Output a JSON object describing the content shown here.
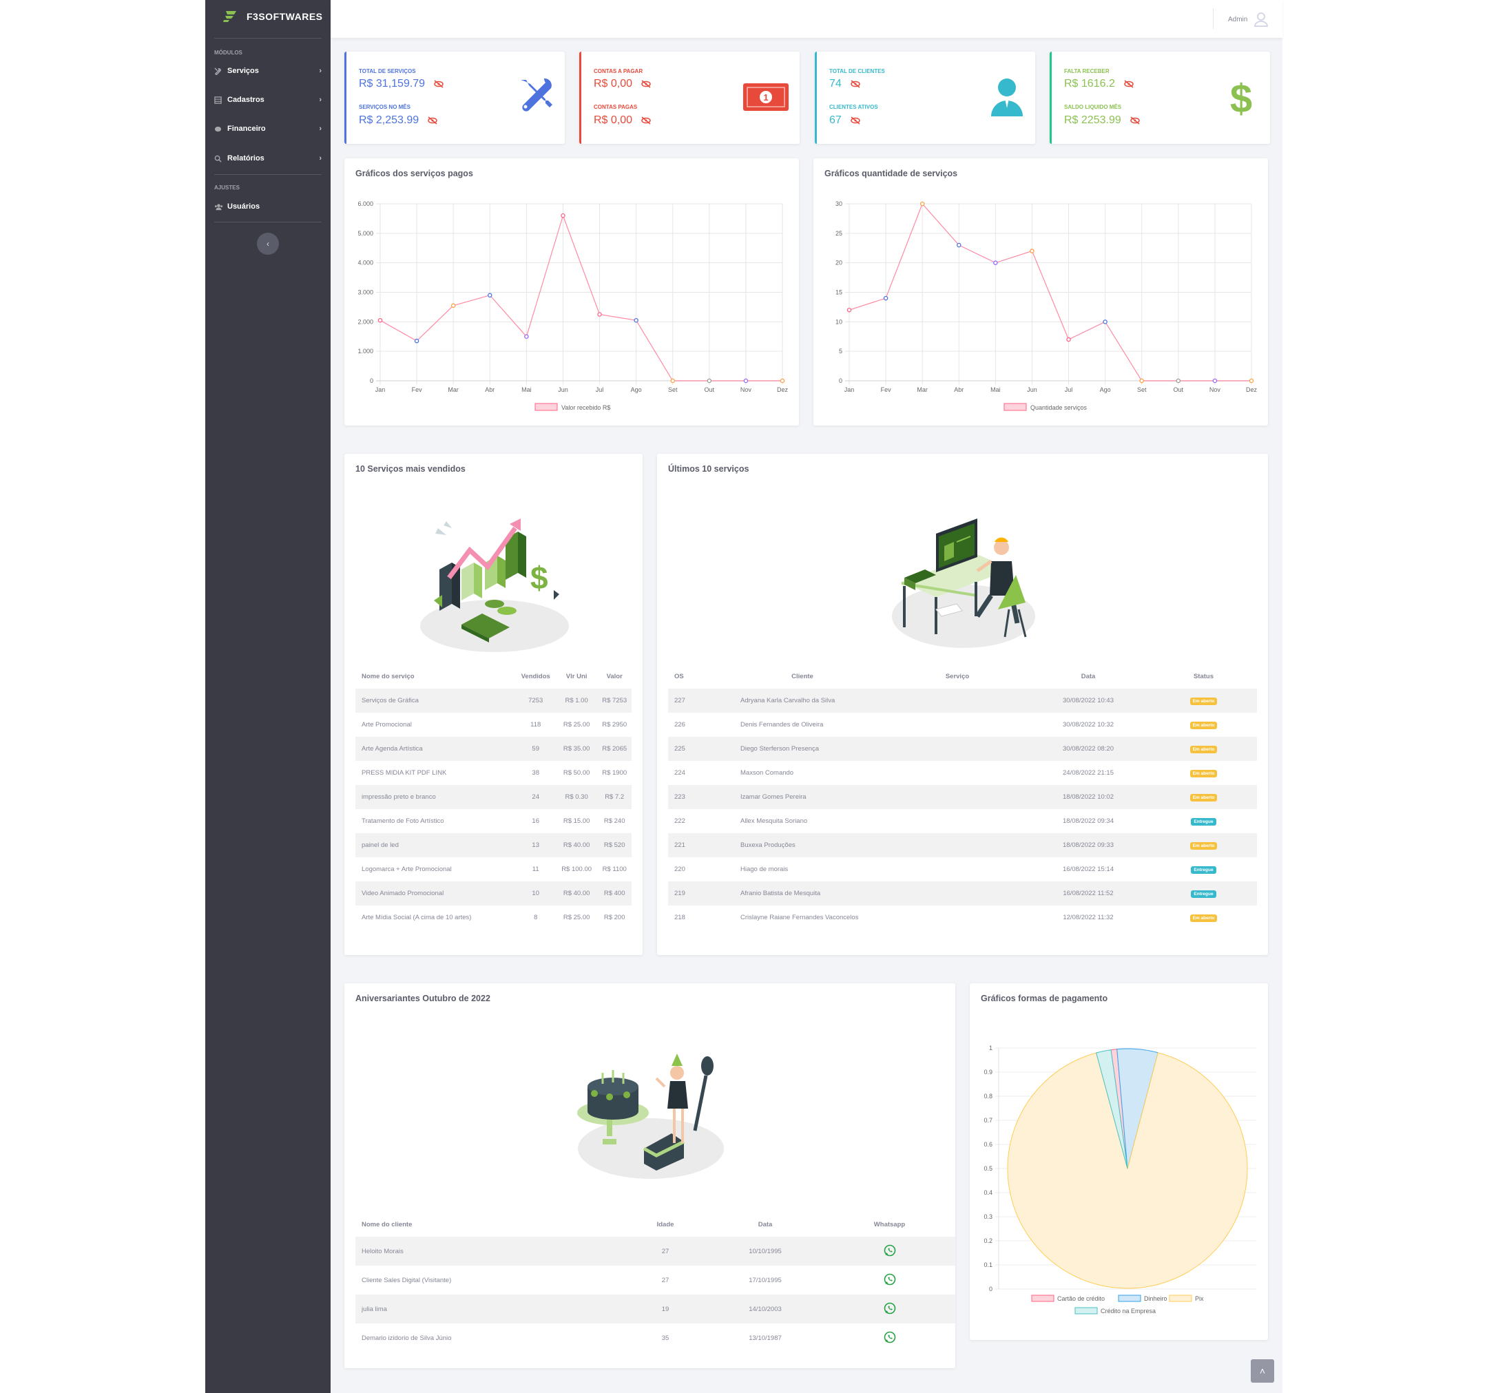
{
  "brand": {
    "name": "F3SOFTWARES"
  },
  "sidebar": {
    "heading_modules": "MÓDULOS",
    "items": [
      {
        "label": "Serviços",
        "icon": "tools-icon"
      },
      {
        "label": "Cadastros",
        "icon": "table-icon"
      },
      {
        "label": "Financeiro",
        "icon": "money-icon"
      },
      {
        "label": "Relatórios",
        "icon": "search-icon"
      }
    ],
    "heading_settings": "AJUSTES",
    "users_label": "Usuários",
    "toggle_glyph": "‹"
  },
  "topbar": {
    "user_label": "Admin"
  },
  "kpis": [
    {
      "label1": "TOTAL DE SERVIÇOS",
      "value1": "R$ 31,159.79",
      "label2": "SERVIÇOS NO MÊS",
      "value2": "R$ 2,253.99",
      "color": "#4e73df",
      "icon": "tools-icon"
    },
    {
      "label1": "CONTAS A PAGAR",
      "value1": "R$ 0,00",
      "label2": "CONTAS PAGAS",
      "value2": "R$ 0,00",
      "color": "#e74a3b",
      "icon": "money-bill-icon"
    },
    {
      "label1": "TOTAL DE CLIENTES",
      "value1": "74",
      "label2": "CLIENTES ATIVOS",
      "value2": "67",
      "color": "#36b9cc",
      "icon": "user-icon"
    },
    {
      "label1": "FALTA RECEBER",
      "value1": "R$ 1616.2",
      "label2": "SALDO LIQUIDO MÊS",
      "value2": "R$ 2253.99",
      "color": "#1cc88a",
      "value_color": "#8cc152",
      "icon": "dollar-icon"
    }
  ],
  "chart_titles": {
    "paid": "Gráficos dos serviços pagos",
    "qty": "Gráficos quantidade de serviços",
    "payments": "Gráficos formas de pagamento"
  },
  "chart_data": [
    {
      "type": "line",
      "categories": [
        "Jan",
        "Fev",
        "Mar",
        "Abr",
        "Mai",
        "Jun",
        "Jul",
        "Ago",
        "Set",
        "Out",
        "Nov",
        "Dez"
      ],
      "series": [
        {
          "name": "Valor recebido R$",
          "values": [
            2050,
            1350,
            2550,
            2900,
            1500,
            5600,
            2250,
            2050,
            0,
            0,
            0,
            0
          ]
        }
      ],
      "yticks": [
        "0",
        "1.000",
        "2.000",
        "3.000",
        "4.000",
        "5.000",
        "6.000"
      ],
      "ylim": [
        0,
        6000
      ],
      "line_color": "#ff6384",
      "point_colors": [
        "#ff6384",
        "#4e73df",
        "#ff9f40",
        "#4e73df",
        "#9966ff",
        "#ff6384",
        "#ff6384",
        "#4e73df",
        "#ff9f40",
        "#999999",
        "#9966ff",
        "#ff9f40"
      ],
      "grid": true,
      "legend": "bottom"
    },
    {
      "type": "line",
      "categories": [
        "Jan",
        "Fev",
        "Mar",
        "Abr",
        "Mai",
        "Jun",
        "Jul",
        "Ago",
        "Set",
        "Out",
        "Nov",
        "Dez"
      ],
      "series": [
        {
          "name": "Quantidade serviços",
          "values": [
            12,
            14,
            30,
            23,
            20,
            22,
            7,
            10,
            0,
            0,
            0,
            0
          ]
        }
      ],
      "yticks": [
        "0",
        "5",
        "10",
        "15",
        "20",
        "25",
        "30"
      ],
      "ylim": [
        0,
        30
      ],
      "line_color": "#ff6384",
      "point_colors": [
        "#ff6384",
        "#4e73df",
        "#ff9f40",
        "#4e73df",
        "#9966ff",
        "#ff9f40",
        "#ff6384",
        "#4e73df",
        "#ff9f40",
        "#999999",
        "#9966ff",
        "#ff9f40"
      ],
      "grid": true,
      "legend": "bottom"
    },
    {
      "type": "pie",
      "series": [
        {
          "name": "Cartão de crédito",
          "value": 0.008,
          "fill": "#ffd3dc",
          "stroke": "#ff6384"
        },
        {
          "name": "Dinheiro",
          "value": 0.055,
          "fill": "#cfe7f7",
          "stroke": "#36a2eb"
        },
        {
          "name": "Pix",
          "value": 0.917,
          "fill": "#fff1d6",
          "stroke": "#ffcd56"
        },
        {
          "name": "Crédito na Empresa",
          "value": 0.02,
          "fill": "#d4f1f1",
          "stroke": "#4bc0c0"
        }
      ],
      "yticks": [
        "0",
        "0.1",
        "0.2",
        "0.3",
        "0.4",
        "0.5",
        "0.6",
        "0.7",
        "0.8",
        "0.9",
        "1"
      ],
      "ylim": [
        0,
        1
      ],
      "legend": "bottom"
    }
  ],
  "top_services": {
    "title": "10 Serviços mais vendidos",
    "headers": [
      "Nome do serviço",
      "Vendidos",
      "Vlr Uni",
      "Valor"
    ],
    "rows": [
      [
        "Serviços de Gráfica",
        "7253",
        "R$ 1.00",
        "R$ 7253"
      ],
      [
        "Arte Promocional",
        "118",
        "R$ 25.00",
        "R$ 2950"
      ],
      [
        "Arte Agenda Artística",
        "59",
        "R$ 35.00",
        "R$ 2065"
      ],
      [
        "PRESS MIDIA KIT PDF LINK",
        "38",
        "R$ 50.00",
        "R$ 1900"
      ],
      [
        "impressão preto e branco",
        "24",
        "R$ 0.30",
        "R$ 7.2"
      ],
      [
        "Tratamento de Foto Artístico",
        "16",
        "R$ 15.00",
        "R$ 240"
      ],
      [
        "painel de led",
        "13",
        "R$ 40.00",
        "R$ 520"
      ],
      [
        "Logomarca + Arte Promocional",
        "11",
        "R$ 100.00",
        "R$ 1100"
      ],
      [
        "Video Animado Promocional",
        "10",
        "R$ 40.00",
        "R$ 400"
      ],
      [
        "Arte Mídia Social (A cima de 10 artes)",
        "8",
        "R$ 25.00",
        "R$ 200"
      ]
    ]
  },
  "last_services": {
    "title": "Últimos 10 serviços",
    "headers": [
      "OS",
      "Cliente",
      "Serviço",
      "Data",
      "Status"
    ],
    "rows": [
      [
        "227",
        "Adryana Karla Carvalho da Silva",
        "",
        "30/08/2022 10:43",
        "Em aberto"
      ],
      [
        "226",
        "Denis Fernandes de Oliveira",
        "",
        "30/08/2022 10:32",
        "Em aberto"
      ],
      [
        "225",
        "Diego Sterferson Presença",
        "",
        "30/08/2022 08:20",
        "Em aberto"
      ],
      [
        "224",
        "Maxson Comando",
        "",
        "24/08/2022 21:15",
        "Em aberto"
      ],
      [
        "223",
        "Izamar Gomes Pereira",
        "",
        "18/08/2022 10:02",
        "Em aberto"
      ],
      [
        "222",
        "Allex Mesquita Soriano",
        "",
        "18/08/2022 09:34",
        "Entregue"
      ],
      [
        "221",
        "Buxexa Produções",
        "",
        "18/08/2022 09:33",
        "Em aberto"
      ],
      [
        "220",
        "Hiago de morais",
        "",
        "16/08/2022 15:14",
        "Entregue"
      ],
      [
        "219",
        "Afranio Batista de Mesquita",
        "",
        "16/08/2022 11:52",
        "Entregue"
      ],
      [
        "218",
        "Crislayne Raiane Fernandes Vaconcelos",
        "",
        "12/08/2022 11:32",
        "Em aberto"
      ]
    ]
  },
  "birthdays": {
    "title": "Aniversariantes Outubro de 2022",
    "headers": [
      "Nome do cliente",
      "Idade",
      "Data",
      "Whatsapp"
    ],
    "rows": [
      [
        "Heloito Morais",
        "27",
        "10/10/1995"
      ],
      [
        "Cliente Sales Digital (Visitante)",
        "27",
        "17/10/1995"
      ],
      [
        "julia lima",
        "19",
        "14/10/2003"
      ],
      [
        "Demario izidorio de Silva Júnio",
        "35",
        "13/10/1987"
      ]
    ]
  },
  "scroll_top_glyph": "˄"
}
